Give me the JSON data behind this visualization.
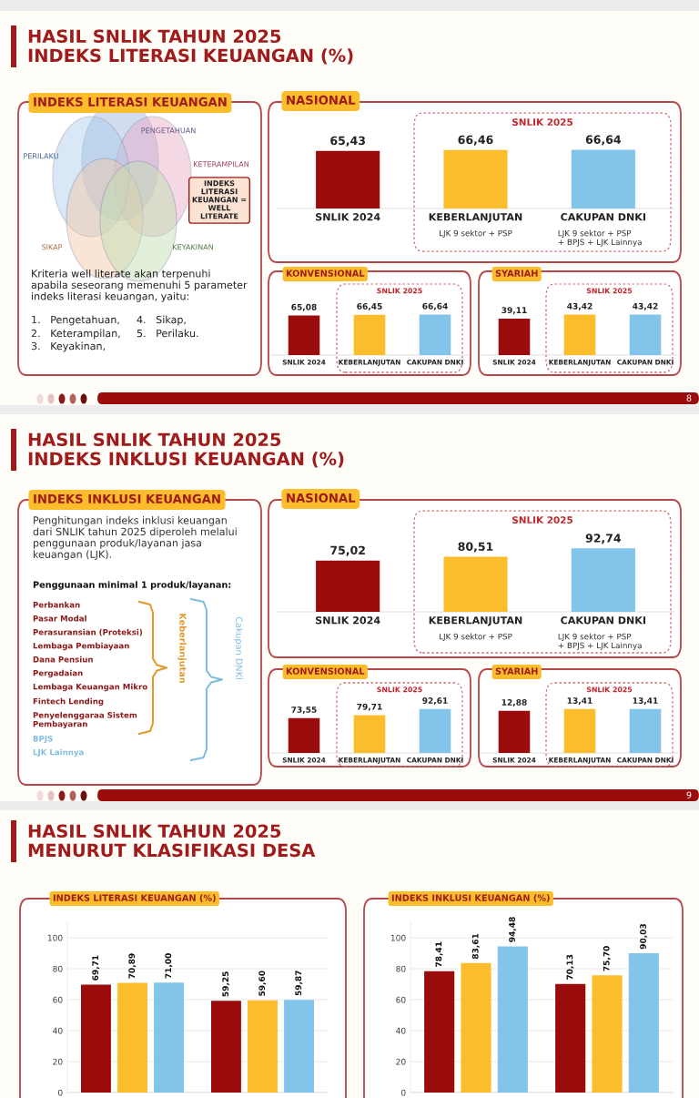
{
  "chart_data": [
    {
      "type": "other",
      "title": "HASIL SNLIK TAHUN 2025\nINDEKS LITERASI KEUANGAN (%)",
      "annotations": [
        "8"
      ]
    },
    {
      "type": "other",
      "title": "INDEKS LITERASI KEUANGAN",
      "annotations": [
        "PENGETAHUAN",
        "KETERAMPILAN",
        "PERILAKU",
        "SIKAP",
        "KEYAKINAN",
        "INDEKS\nLITERASI\nKEUANGAN =\nWELL\nLITERATE",
        "Kriteria well literate akan terpenuhi\napabila seseorang memenuhi 5 parameter\nindeks literasi keuangan, yaitu:",
        "1.   Pengetahuan,",
        "2.   Keterampilan,",
        "3.   Keyakinan,",
        "4.   Sikap,",
        "5.   Perilaku."
      ]
    },
    {
      "type": "bar",
      "title": "NASIONAL",
      "categories": [
        "SNLIK 2024",
        "KEBERLANJUTAN",
        "CAKUPAN DNKI"
      ],
      "values": [
        65.43,
        66.46,
        66.64
      ],
      "colors": [
        "#9a0b0b",
        "#fbbd2b",
        "#83c4ea"
      ],
      "value_labels": [
        "65,43",
        "66,46",
        "66,64"
      ],
      "annotations": [
        "SNLIK 2025",
        "LJK 9 sektor + PSP",
        "LJK 9 sektor + PSP\n+ BPJS + LJK Lainnya"
      ]
    },
    {
      "type": "bar",
      "title": "KONVENSIONAL",
      "categories": [
        "SNLIK 2024",
        "KEBERLANJUTAN",
        "CAKUPAN DNKI"
      ],
      "values": [
        65.08,
        66.45,
        66.64
      ],
      "colors": [
        "#9a0b0b",
        "#fbbd2b",
        "#83c4ea"
      ],
      "value_labels": [
        "65,08",
        "66,45",
        "66,64"
      ],
      "annotations": [
        "SNLIK 2025"
      ]
    },
    {
      "type": "bar",
      "title": "SYARIAH",
      "categories": [
        "SNLIK 2024",
        "KEBERLANJUTAN",
        "CAKUPAN DNKI"
      ],
      "values": [
        39.11,
        43.42,
        43.42
      ],
      "colors": [
        "#9a0b0b",
        "#fbbd2b",
        "#83c4ea"
      ],
      "value_labels": [
        "39,11",
        "43,42",
        "43,42"
      ],
      "annotations": [
        "SNLIK 2025"
      ]
    },
    {
      "type": "other",
      "title": "HASIL SNLIK TAHUN 2025\nINDEKS INKLUSI KEUANGAN (%)",
      "annotations": [
        "9"
      ]
    },
    {
      "type": "other",
      "title": "INDEKS INKLUSI KEUANGAN",
      "annotations": [
        "Penghitungan indeks inklusi keuangan\ndari SNLIK tahun 2025 diperoleh melalui\npenggunaan produk/layanan jasa\nkeuangan (LJK).",
        "Penggunaan minimal 1 produk/layanan:",
        "Perbankan",
        "Pasar Modal",
        "Perasuransian (Proteksi)",
        "Lembaga Pembiayaan",
        "Dana Pensiun",
        "Pergadaian",
        "Lembaga Keuangan Mikro",
        "Fintech Lending",
        "Penyelenggaraa Sistem\nPembayaran",
        "BPJS",
        "LJK Lainnya",
        "Keberlanjutan",
        "Cakupan DNKI"
      ]
    },
    {
      "type": "bar",
      "title": "NASIONAL",
      "categories": [
        "SNLIK 2024",
        "KEBERLANJUTAN",
        "CAKUPAN DNKI"
      ],
      "values": [
        75.02,
        80.51,
        92.74
      ],
      "colors": [
        "#9a0b0b",
        "#fbbd2b",
        "#83c4ea"
      ],
      "value_labels": [
        "75,02",
        "80,51",
        "92,74"
      ],
      "annotations": [
        "SNLIK 2025",
        "LJK 9 sektor + PSP",
        "LJK 9 sektor + PSP\n+ BPJS + LJK Lainnya"
      ]
    },
    {
      "type": "bar",
      "title": "KONVENSIONAL",
      "categories": [
        "SNLIK 2024",
        "KEBERLANJUTAN",
        "CAKUPAN DNKI"
      ],
      "values": [
        73.55,
        79.71,
        92.61
      ],
      "colors": [
        "#9a0b0b",
        "#fbbd2b",
        "#83c4ea"
      ],
      "value_labels": [
        "73,55",
        "79,71",
        "92,61"
      ],
      "annotations": [
        "SNLIK 2025"
      ]
    },
    {
      "type": "bar",
      "title": "SYARIAH",
      "categories": [
        "SNLIK 2024",
        "KEBERLANJUTAN",
        "CAKUPAN DNKI"
      ],
      "values": [
        12.88,
        13.41,
        13.41
      ],
      "colors": [
        "#9a0b0b",
        "#fbbd2b",
        "#83c4ea"
      ],
      "value_labels": [
        "12,88",
        "13,41",
        "13,41"
      ],
      "annotations": [
        "SNLIK 2025"
      ]
    },
    {
      "type": "other",
      "title": "HASIL SNLIK TAHUN 2025\nMENURUT KLASIFIKASI DESA"
    },
    {
      "type": "bar",
      "title": "INDEKS LITERASI KEUANGAN (%)",
      "categories": [
        null,
        null
      ],
      "ylim": [
        0,
        110
      ],
      "yticks": [
        0,
        20,
        40,
        60,
        80,
        100
      ],
      "grid": "y",
      "series": [
        {
          "color": "#9a0b0b",
          "values": [
            69.71,
            59.25
          ],
          "value_labels": [
            "69,71",
            "59,25"
          ]
        },
        {
          "color": "#fbbd2b",
          "values": [
            70.89,
            59.6
          ],
          "value_labels": [
            "70,89",
            "59,60"
          ]
        },
        {
          "color": "#83c4ea",
          "values": [
            71.0,
            59.87
          ],
          "value_labels": [
            "71,00",
            "59,87"
          ]
        }
      ]
    },
    {
      "type": "bar",
      "title": "INDEKS INKLUSI KEUANGAN (%)",
      "categories": [
        null,
        null
      ],
      "ylim": [
        0,
        110
      ],
      "yticks": [
        0,
        20,
        40,
        60,
        80,
        100
      ],
      "grid": "y",
      "series": [
        {
          "color": "#9a0b0b",
          "values": [
            78.41,
            70.13
          ],
          "value_labels": [
            "78,41",
            "70,13"
          ]
        },
        {
          "color": "#fbbd2b",
          "values": [
            83.61,
            75.7
          ],
          "value_labels": [
            "83,61",
            "75,70"
          ]
        },
        {
          "color": "#83c4ea",
          "values": [
            94.48,
            90.03
          ],
          "value_labels": [
            "94,48",
            "90,03"
          ]
        }
      ]
    }
  ]
}
